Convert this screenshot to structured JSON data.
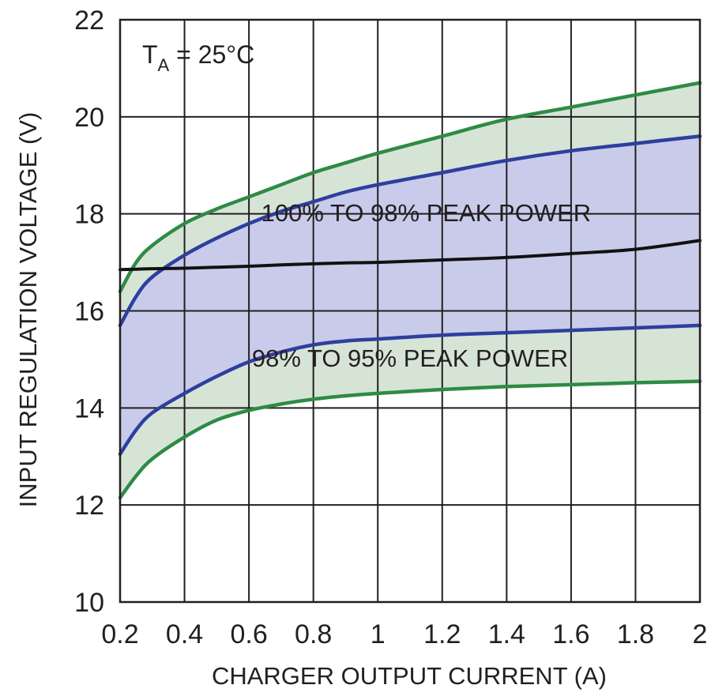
{
  "chart_data": {
    "type": "line",
    "title": "",
    "xlabel": "CHARGER OUTPUT CURRENT (A)",
    "ylabel": "INPUT REGULATION VOLTAGE (V)",
    "xlim": [
      0.2,
      2
    ],
    "ylim": [
      10,
      22
    ],
    "xticks": [
      0.2,
      0.4,
      0.6,
      0.8,
      1,
      1.2,
      1.4,
      1.6,
      1.8,
      2
    ],
    "xtick_labels": [
      "0.2",
      "0.4",
      "0.6",
      "0.8",
      "1",
      "1.2",
      "1.4",
      "1.6",
      "1.8",
      "2"
    ],
    "yticks": [
      10,
      12,
      14,
      16,
      18,
      20,
      22
    ],
    "ytick_labels": [
      "10",
      "12",
      "14",
      "16",
      "18",
      "20",
      "22"
    ],
    "grid": true,
    "condition": {
      "main": "T",
      "sub": "A",
      "rest": " = 25°C"
    },
    "annotations": [
      {
        "text": "100% TO 98% PEAK POWER",
        "x": 1.15,
        "y": 17.85
      },
      {
        "text": "98% TO 95% PEAK POWER",
        "x": 1.1,
        "y": 14.85
      }
    ],
    "colors": {
      "outer_green": "#2e8b45",
      "inner_blue": "#2e3f9e",
      "peak_black": "#111111",
      "band_green_fill": "#d6e4d6",
      "band_blue_fill": "#c9cbea",
      "grid": "#231f20"
    },
    "x": [
      0.2,
      0.25,
      0.3,
      0.4,
      0.5,
      0.6,
      0.7,
      0.8,
      0.9,
      1.0,
      1.2,
      1.4,
      1.6,
      1.8,
      2.0
    ],
    "series": [
      {
        "role": "upper-outer",
        "color_key": "outer_green",
        "values": [
          16.4,
          17.0,
          17.35,
          17.8,
          18.1,
          18.35,
          18.6,
          18.85,
          19.05,
          19.25,
          19.6,
          19.95,
          20.2,
          20.45,
          20.7
        ]
      },
      {
        "role": "upper-inner",
        "color_key": "inner_blue",
        "values": [
          15.7,
          16.3,
          16.7,
          17.15,
          17.5,
          17.8,
          18.05,
          18.25,
          18.45,
          18.6,
          18.85,
          19.1,
          19.3,
          19.45,
          19.6
        ]
      },
      {
        "role": "peak",
        "color_key": "peak_black",
        "values": [
          16.85,
          16.86,
          16.87,
          16.88,
          16.9,
          16.92,
          16.95,
          16.97,
          16.99,
          17.0,
          17.05,
          17.1,
          17.18,
          17.27,
          17.45
        ]
      },
      {
        "role": "lower-inner",
        "color_key": "inner_blue",
        "values": [
          13.05,
          13.55,
          13.9,
          14.3,
          14.65,
          14.95,
          15.15,
          15.3,
          15.38,
          15.42,
          15.5,
          15.55,
          15.6,
          15.65,
          15.7
        ]
      },
      {
        "role": "lower-outer",
        "color_key": "outer_green",
        "values": [
          12.15,
          12.6,
          12.95,
          13.4,
          13.75,
          13.95,
          14.08,
          14.18,
          14.25,
          14.3,
          14.38,
          14.44,
          14.48,
          14.52,
          14.55
        ]
      }
    ]
  }
}
